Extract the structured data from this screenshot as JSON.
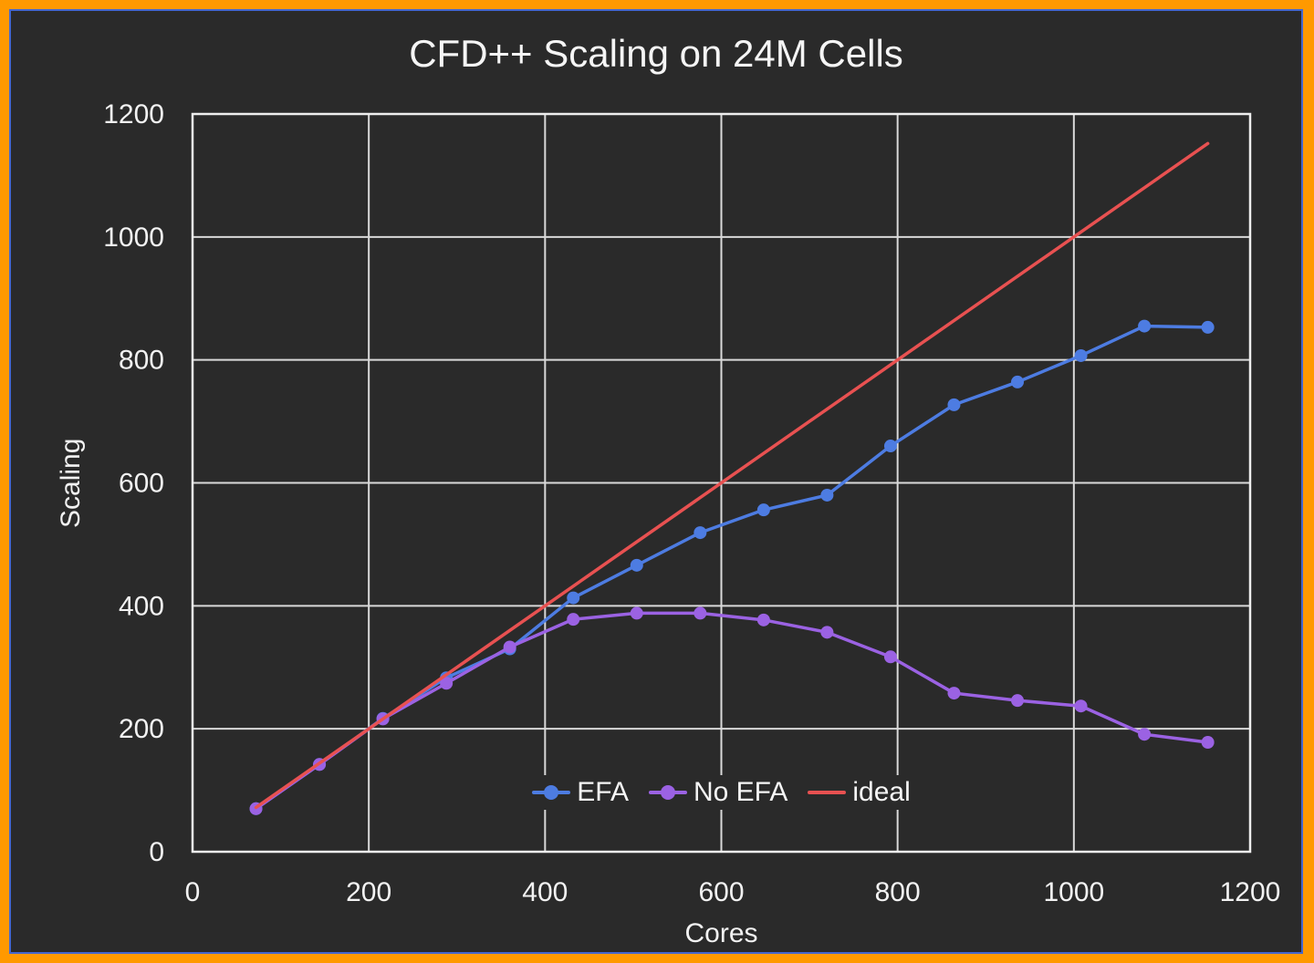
{
  "window": {
    "frame_border_color": "#ff9900",
    "inner_line_color": "#4467cf",
    "background": "#2a2a2a",
    "text_color": "#f2f2f2",
    "grid_color": "#d9d9d9",
    "plot_border_color": "#eeeeee"
  },
  "chart_data": {
    "type": "line",
    "title": "CFD++ Scaling on 24M Cells",
    "xlabel": "Cores",
    "ylabel": "Scaling",
    "xlim": [
      0,
      1200
    ],
    "ylim": [
      0,
      1200
    ],
    "xticks": [
      0,
      200,
      400,
      600,
      800,
      1000,
      1200
    ],
    "yticks": [
      0,
      200,
      400,
      600,
      800,
      1000,
      1200
    ],
    "grid": true,
    "legend_position": "inside-bottom-center",
    "series": [
      {
        "name": "EFA",
        "color": "#4d7ce2",
        "marker": true,
        "x": [
          72,
          144,
          216,
          288,
          360,
          432,
          504,
          576,
          648,
          720,
          792,
          864,
          936,
          1008,
          1080,
          1152
        ],
        "values": [
          70,
          142,
          217,
          283,
          330,
          413,
          466,
          519,
          556,
          580,
          660,
          727,
          764,
          807,
          855,
          853
        ]
      },
      {
        "name": "No EFA",
        "color": "#9b62e3",
        "marker": true,
        "x": [
          72,
          144,
          216,
          288,
          360,
          432,
          504,
          576,
          648,
          720,
          792,
          864,
          936,
          1008,
          1080,
          1152
        ],
        "values": [
          70,
          142,
          216,
          274,
          333,
          378,
          388,
          388,
          377,
          357,
          317,
          258,
          246,
          237,
          191,
          178
        ]
      },
      {
        "name": "ideal",
        "color": "#e85151",
        "marker": false,
        "x": [
          72,
          1152
        ],
        "values": [
          72,
          1152
        ]
      }
    ]
  }
}
